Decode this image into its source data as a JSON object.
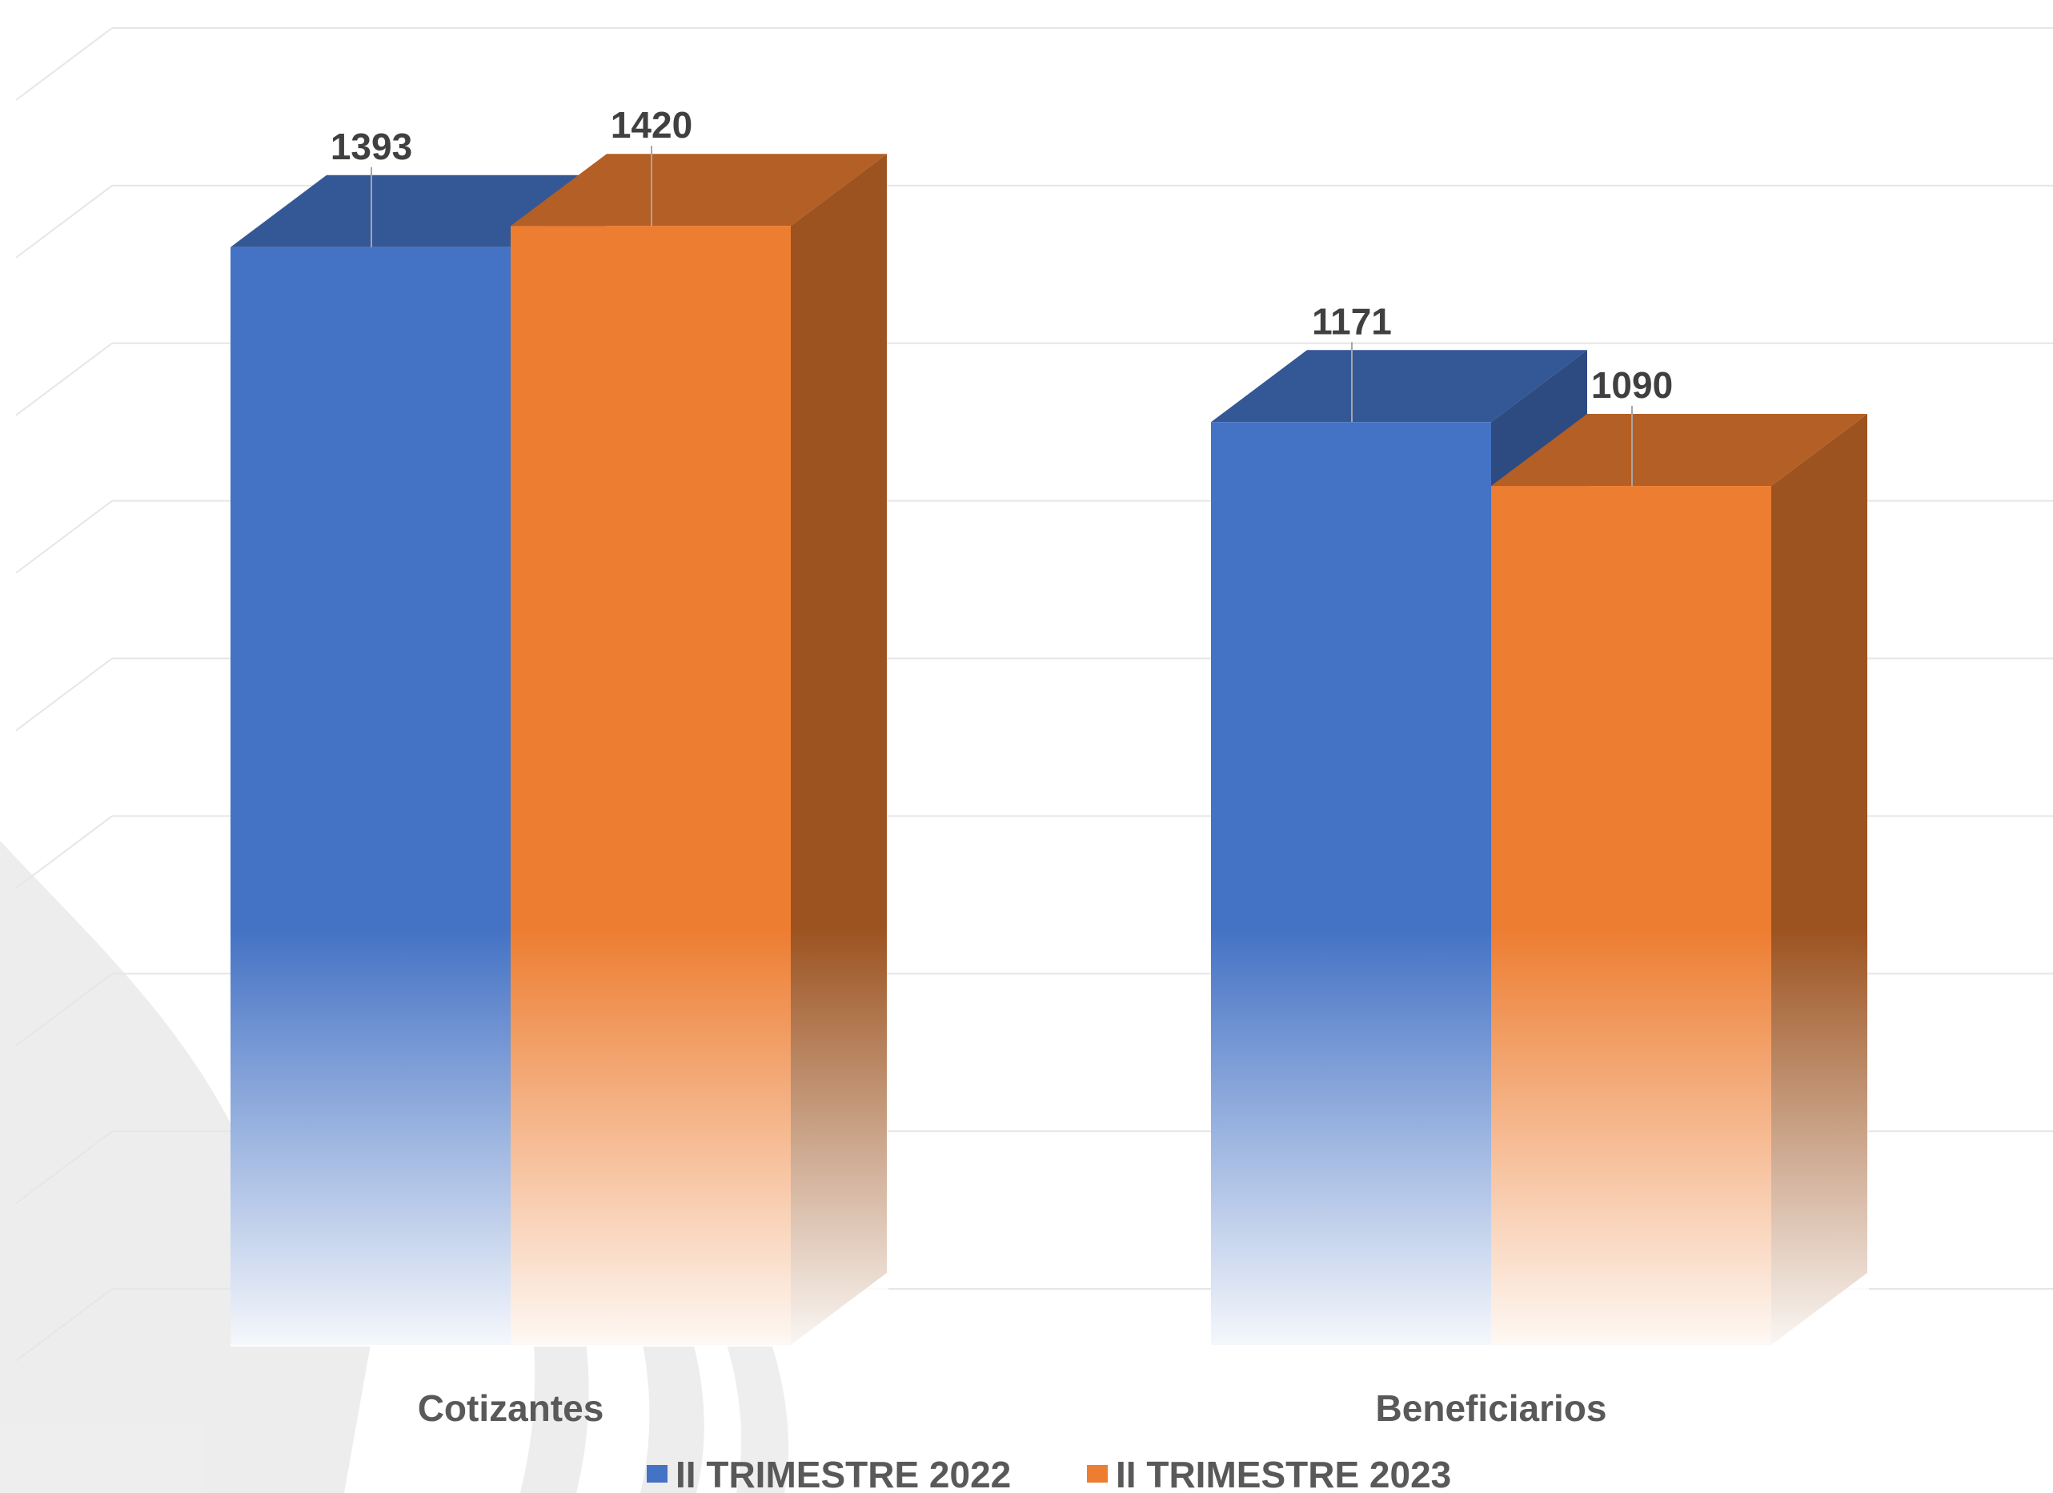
{
  "chart_data": {
    "type": "bar",
    "style": "3d-clustered-column",
    "categories": [
      "Cotizantes",
      "Beneficiarios"
    ],
    "series": [
      {
        "name": "II TRIMESTRE 2022",
        "values": [
          1393,
          1171
        ],
        "color": "#4472C4"
      },
      {
        "name": "II TRIMESTRE 2023",
        "values": [
          1420,
          1090
        ],
        "color": "#ED7D31"
      }
    ],
    "ylim": [
      0,
      1600
    ],
    "grid": true,
    "data_labels": true,
    "legend_position": "bottom"
  }
}
